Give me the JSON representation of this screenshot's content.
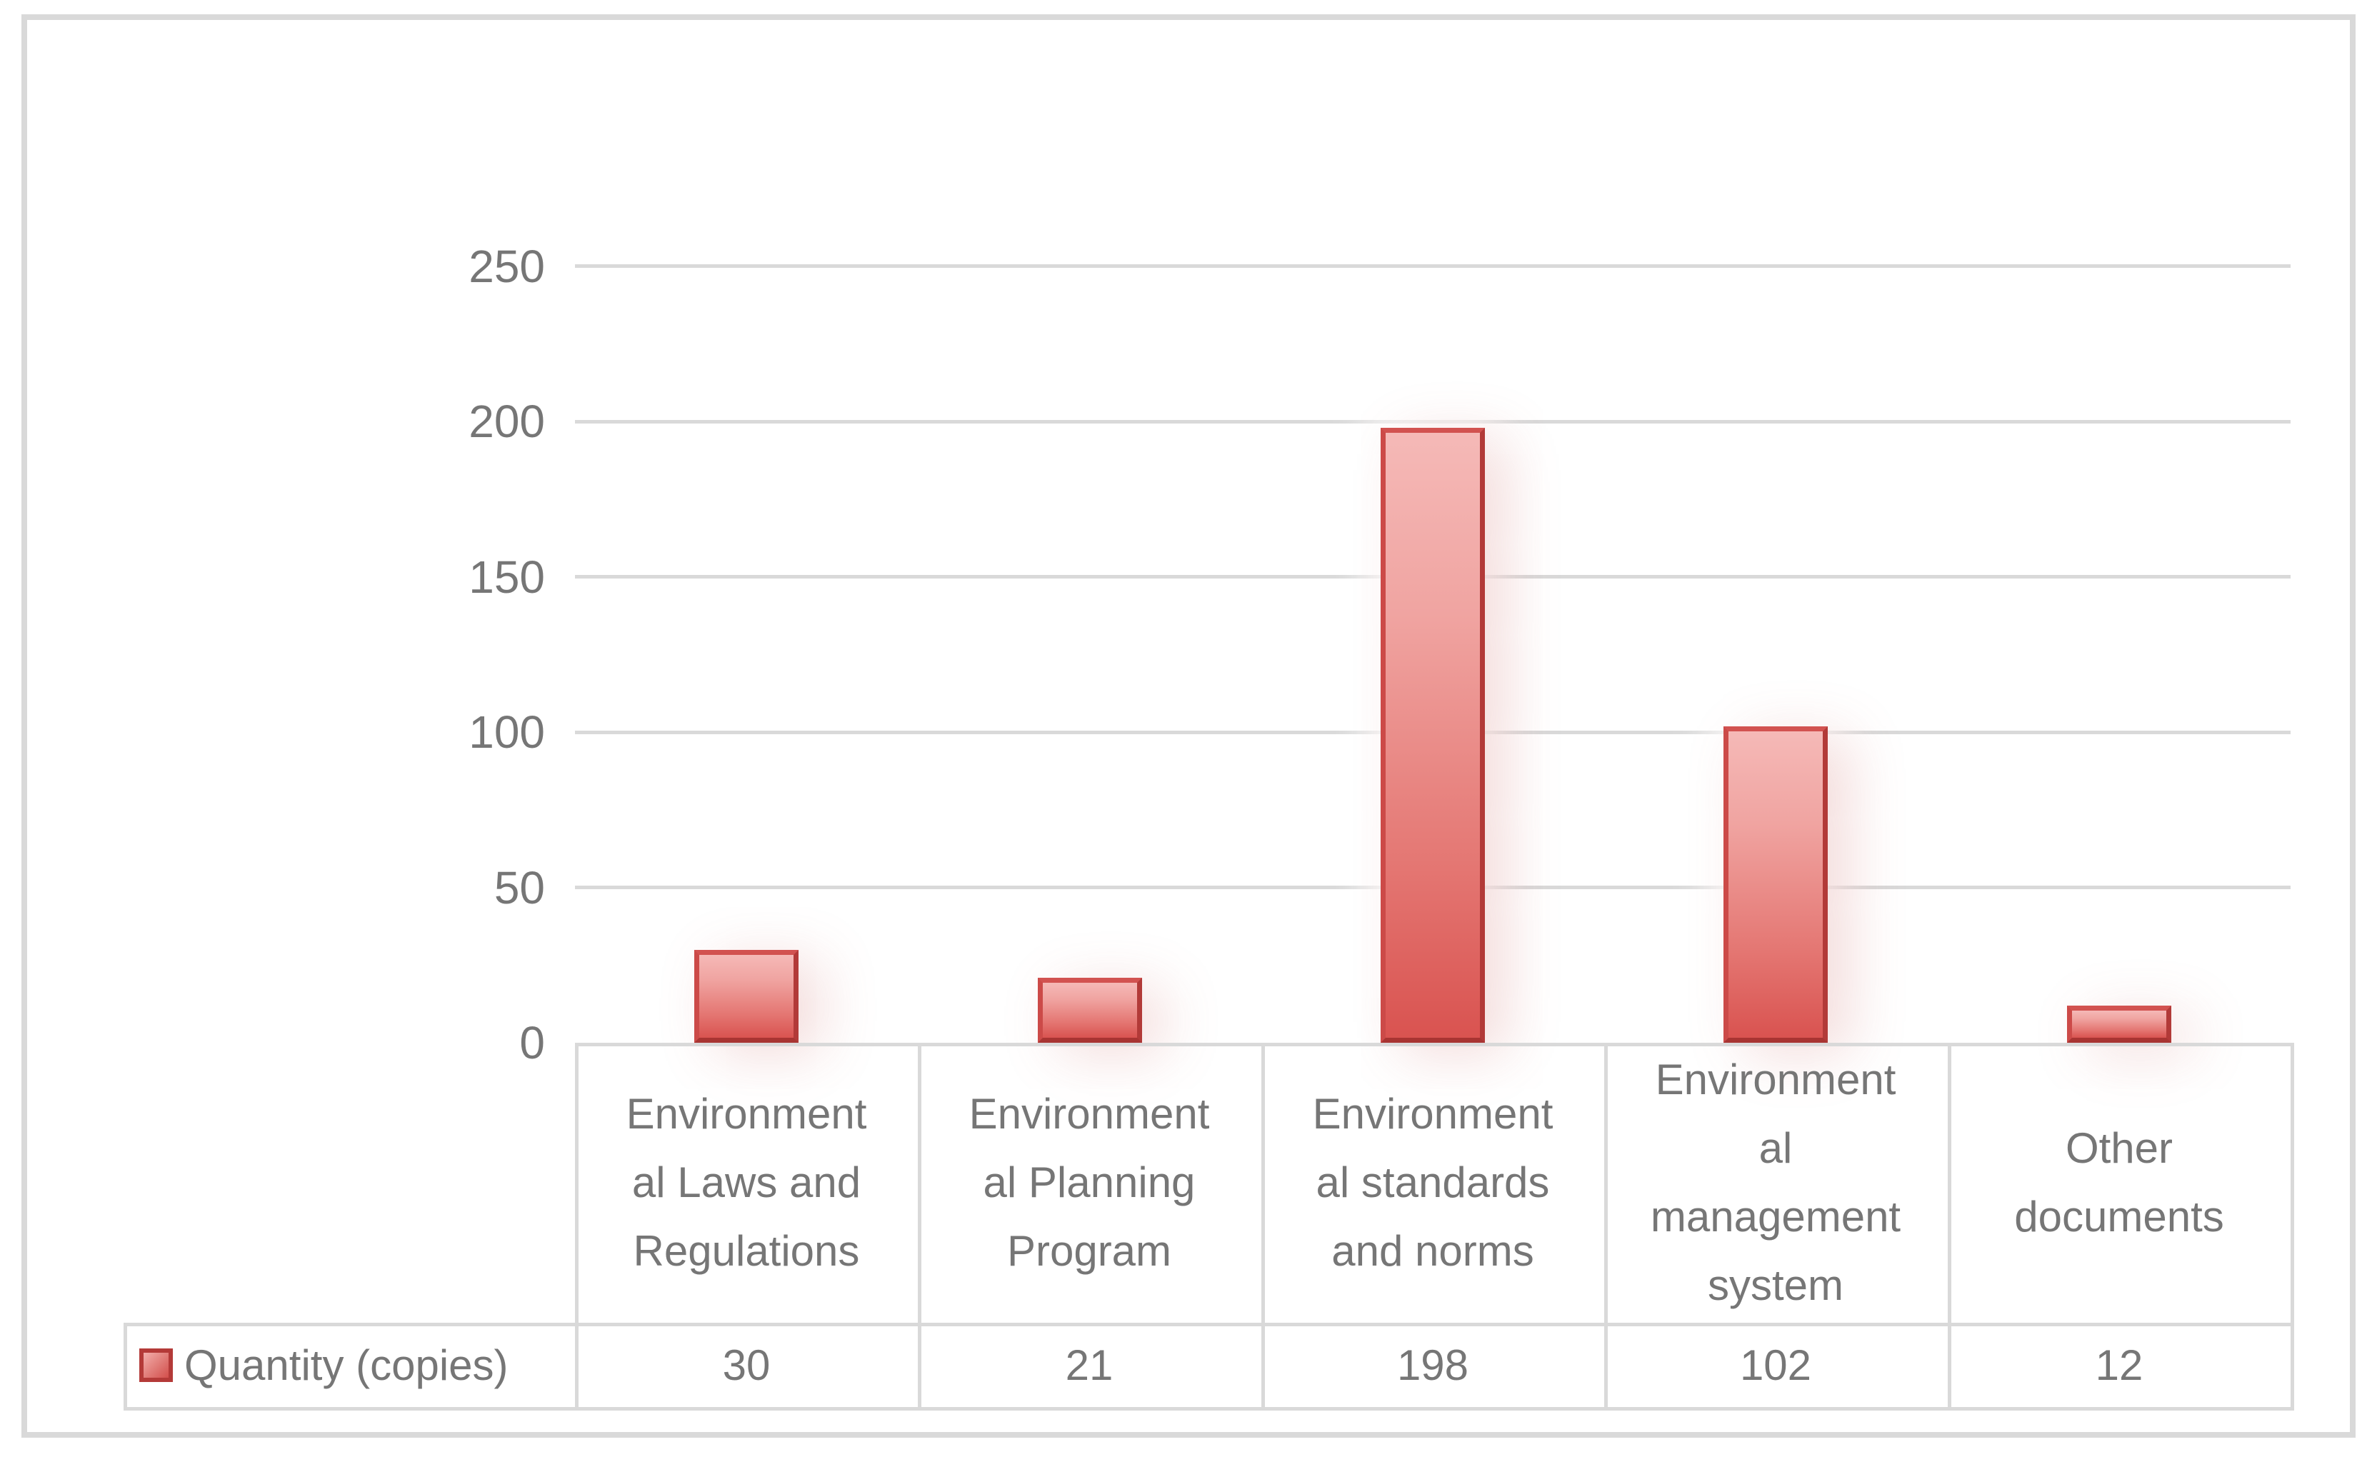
{
  "chart_data": {
    "type": "bar",
    "title": "",
    "categories": [
      "Environmental Laws and Regulations",
      "Environmental Planning Program",
      "Environmental standards and norms",
      "Environmental management system",
      "Other documents"
    ],
    "categories_display": [
      "Environment\nal Laws and\nRegulations",
      "Environment\nal Planning\nProgram",
      "Environment\nal standards\nand norms",
      "Environment\nal\nmanagement\nsystem",
      "Other\ndocuments"
    ],
    "series": [
      {
        "name": "Quantity (copies)",
        "values": [
          30,
          21,
          198,
          102,
          12
        ]
      }
    ],
    "xlabel": "",
    "ylabel": "",
    "ylim": [
      0,
      250
    ],
    "yticks": [
      250,
      200,
      150,
      100,
      50,
      0
    ],
    "grid": "horizontal-light-gray",
    "legend_position": "bottom-left-table-row",
    "gridline_color": "#d9d9d9",
    "text_color": "#767676",
    "bar_fill_top": "#f5b9b7",
    "bar_fill_bottom": "#d95350",
    "bar_border_color": "#c4423f"
  },
  "legend": {
    "label": "Quantity (copies)"
  }
}
